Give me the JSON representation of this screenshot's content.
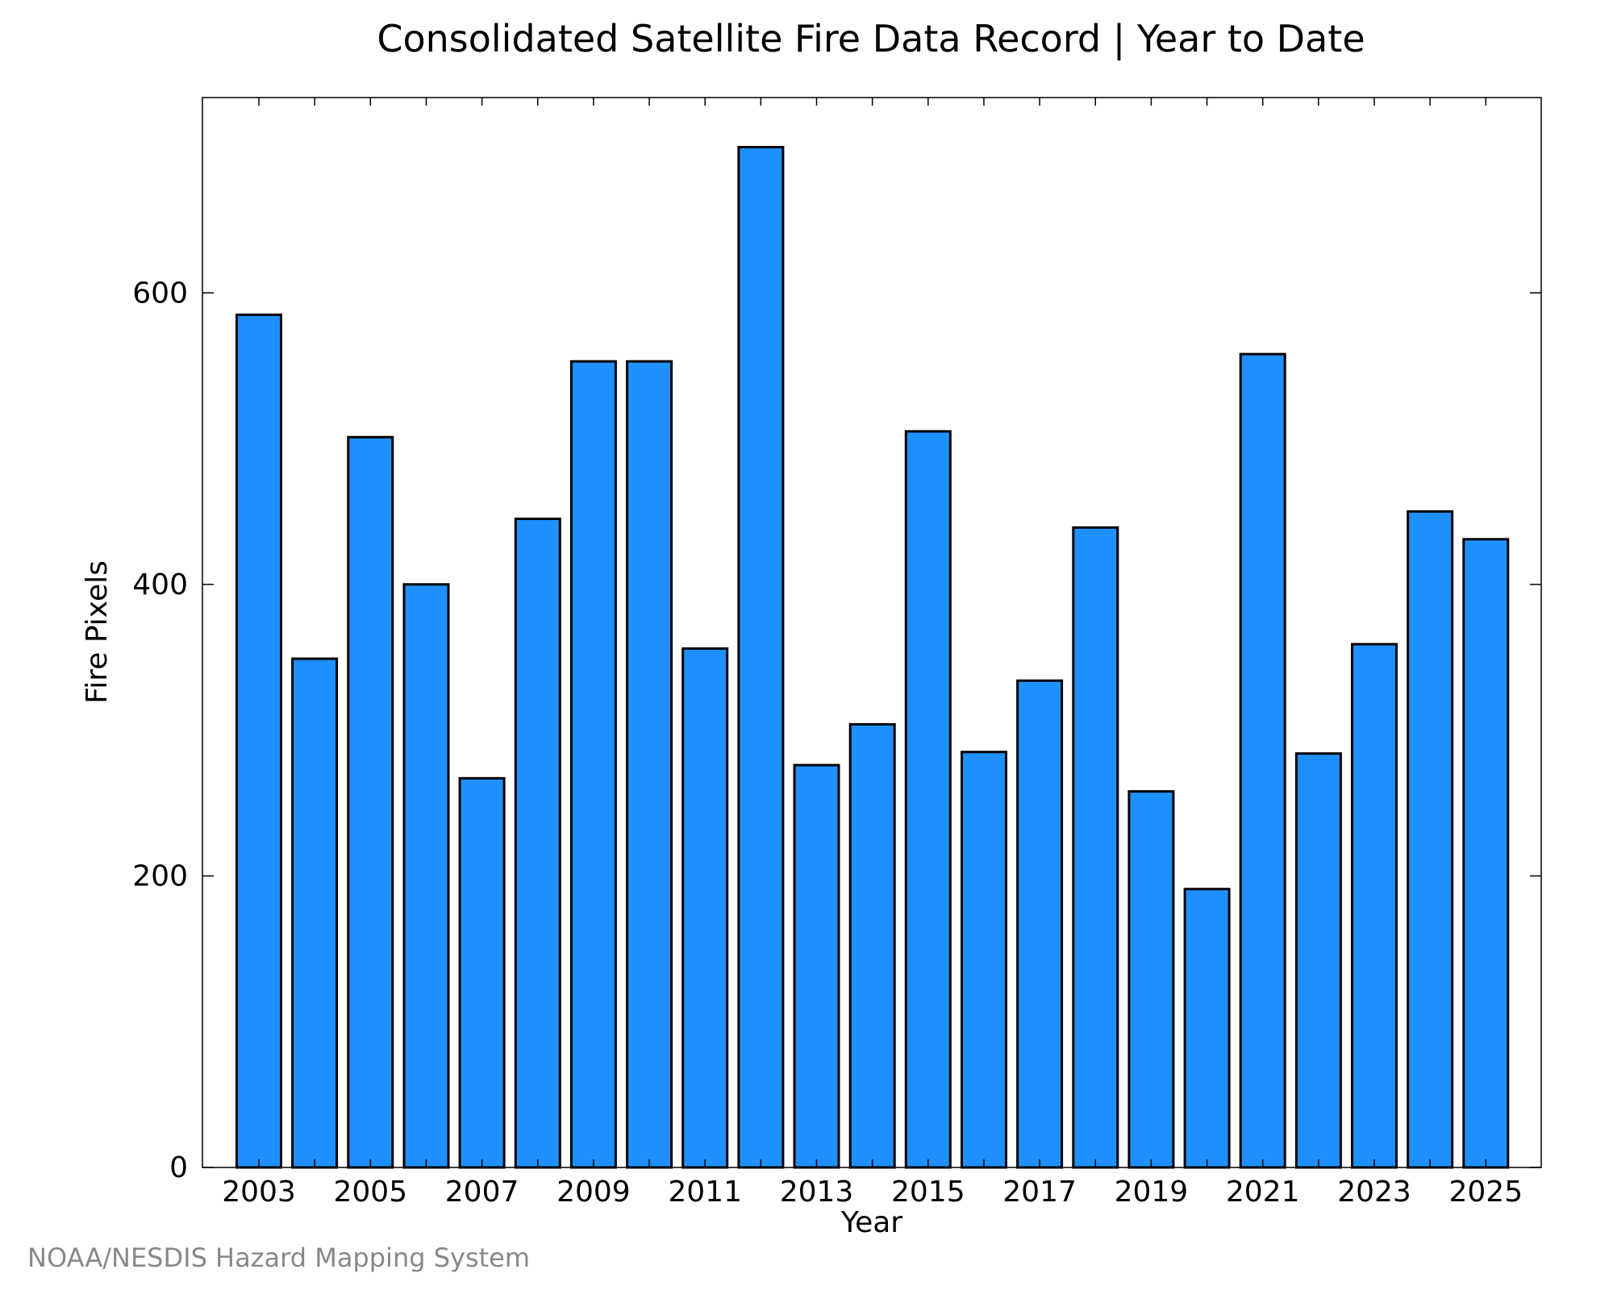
{
  "chart_data": {
    "type": "bar",
    "title": "Consolidated Satellite Fire Data Record | Year to Date",
    "xlabel": "Year",
    "ylabel": "Fire Pixels",
    "categories": [
      "2003",
      "2004",
      "2005",
      "2006",
      "2007",
      "2008",
      "2009",
      "2010",
      "2011",
      "2012",
      "2013",
      "2014",
      "2015",
      "2016",
      "2017",
      "2018",
      "2019",
      "2020",
      "2021",
      "2022",
      "2023",
      "2024",
      "2025"
    ],
    "values": [
      585,
      349,
      501,
      400,
      267,
      445,
      553,
      553,
      356,
      700,
      276,
      304,
      505,
      285,
      334,
      439,
      258,
      191,
      558,
      284,
      359,
      450,
      431
    ],
    "x_tick_labels": [
      "2003",
      "2005",
      "2007",
      "2009",
      "2011",
      "2013",
      "2015",
      "2017",
      "2019",
      "2021",
      "2023",
      "2025"
    ],
    "y_ticks": [
      0,
      200,
      400,
      600
    ],
    "ylim": [
      0,
      734
    ],
    "grid": false,
    "bar_color": "#1E90FF",
    "edge_color": "#000000"
  },
  "footer": {
    "source": "NOAA/NESDIS Hazard Mapping System"
  }
}
